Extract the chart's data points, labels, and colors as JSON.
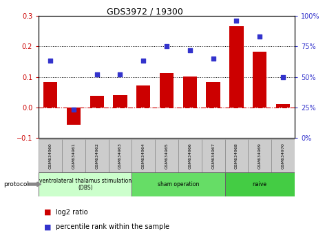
{
  "title": "GDS3972 / 19300",
  "samples": [
    "GSM634960",
    "GSM634961",
    "GSM634962",
    "GSM634963",
    "GSM634964",
    "GSM634965",
    "GSM634966",
    "GSM634967",
    "GSM634968",
    "GSM634969",
    "GSM634970"
  ],
  "log2_ratio": [
    0.083,
    -0.057,
    0.038,
    0.04,
    0.072,
    0.112,
    0.102,
    0.082,
    0.265,
    0.182,
    0.01
  ],
  "percentile_rank": [
    63,
    23,
    52,
    52,
    63,
    75,
    72,
    65,
    96,
    83,
    50
  ],
  "bar_color": "#cc0000",
  "dot_color": "#3333cc",
  "ylim_left": [
    -0.1,
    0.3
  ],
  "ylim_right": [
    0,
    100
  ],
  "yticks_left": [
    -0.1,
    0.0,
    0.1,
    0.2,
    0.3
  ],
  "yticks_right": [
    0,
    25,
    50,
    75,
    100
  ],
  "hlines": [
    0.1,
    0.2
  ],
  "groups": [
    {
      "label": "ventrolateral thalamus stimulation\n(DBS)",
      "start": 0,
      "end": 3,
      "color": "#ccffcc"
    },
    {
      "label": "sham operation",
      "start": 4,
      "end": 7,
      "color": "#66dd66"
    },
    {
      "label": "naive",
      "start": 8,
      "end": 10,
      "color": "#44cc44"
    }
  ],
  "protocol_label": "protocol",
  "legend_bar_label": "log2 ratio",
  "legend_dot_label": "percentile rank within the sample",
  "sample_box_color": "#cccccc",
  "background_color": "#ffffff"
}
